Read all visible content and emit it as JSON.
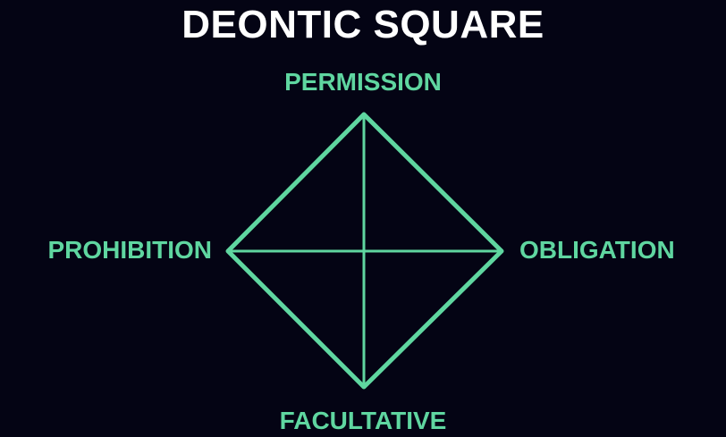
{
  "title": "DEONTIC SQUARE",
  "nodes": {
    "top": "PERMISSION",
    "left": "PROHIBITION",
    "right": "OBLIGATION",
    "bottom": "FACULTATIVE"
  },
  "colors": {
    "background": "#040414",
    "title": "#ffffff",
    "accent": "#5fd6a0"
  }
}
